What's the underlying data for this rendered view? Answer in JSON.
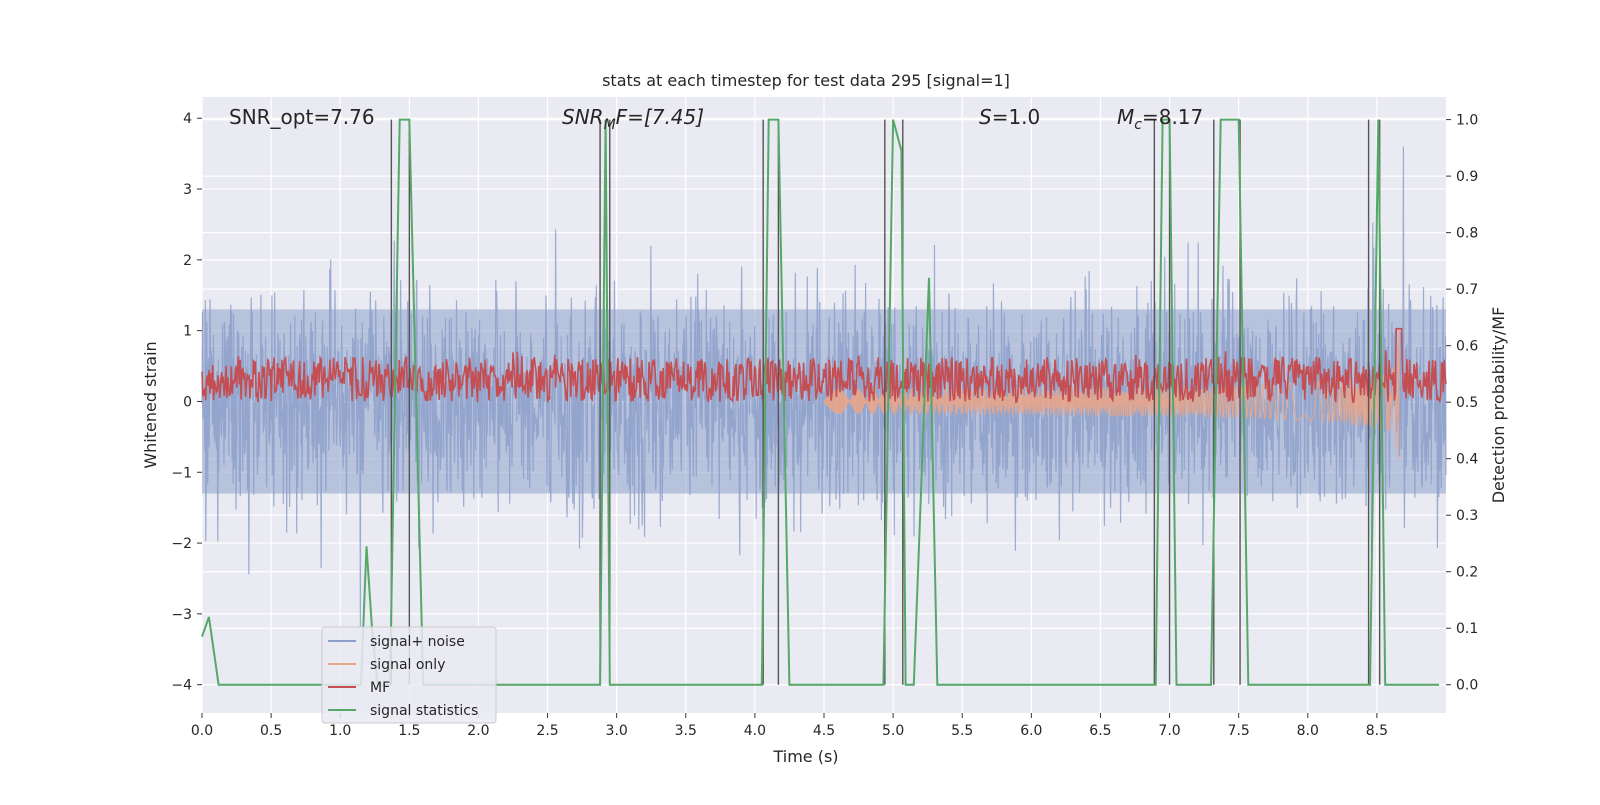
{
  "chart_data": {
    "type": "line",
    "title": "stats at each timestep for test data 295 [signal=1]",
    "xlabel": "Time (s)",
    "ylabel_left": "Whitened strain",
    "ylabel_right": "Detection probability/MF",
    "xlim": [
      0.0,
      9.0
    ],
    "ylim_left": [
      -4.4,
      4.3
    ],
    "ylim_right": [
      -0.05,
      1.04
    ],
    "x_ticks": [
      "0.0",
      "0.5",
      "1.0",
      "1.5",
      "2.0",
      "2.5",
      "3.0",
      "3.5",
      "4.0",
      "4.5",
      "5.0",
      "5.5",
      "6.0",
      "6.5",
      "7.0",
      "7.5",
      "8.0",
      "8.5"
    ],
    "y_left_ticks": [
      "4",
      "3",
      "2",
      "1",
      "0",
      "−1",
      "−2",
      "−3",
      "−4"
    ],
    "y_right_ticks": [
      "1.0",
      "0.9",
      "0.8",
      "0.7",
      "0.6",
      "0.5",
      "0.4",
      "0.3",
      "0.2",
      "0.1",
      "0.0"
    ],
    "grid": true,
    "annotations": {
      "snr_opt": "SNR_opt=7.76",
      "snr_mf": "SNR",
      "snr_mf_sub": "M",
      "snr_mf_rest": "F=[7.45]",
      "s_var": "S",
      "s_rest": "=1.0",
      "mc_var": "M",
      "mc_sub": "c",
      "mc_rest": "=8.17"
    },
    "legend": {
      "placement": "lower-left",
      "entries": [
        "signal+ noise",
        "signal only",
        "MF",
        "signal statistics"
      ]
    },
    "colors": {
      "noise": "#8da0cb",
      "signal": "#e8a58a",
      "mf": "#c44e52",
      "stat": "#55a868",
      "vline": "#555555",
      "plot_bg": "#eaeaf2"
    },
    "series": [
      {
        "name": "signal+ noise",
        "description_kind": "whitened noisy strain, dense oscillation roughly between -2.5 and 2.5 with spikes to about 3.5",
        "amplitude": 2.4
      },
      {
        "name": "signal only",
        "chirp_end_time": 8.66,
        "peak_amplitude": 1.2
      },
      {
        "name": "MF",
        "baseline": 0.52,
        "range": [
          0.5,
          0.58
        ],
        "peak_time": 8.66,
        "peak_value": 0.63
      },
      {
        "name": "signal statistics",
        "points": [
          [
            0.0,
            0.085
          ],
          [
            0.05,
            0.12
          ],
          [
            0.12,
            0.0
          ],
          [
            0.4,
            0.0
          ],
          [
            1.0,
            0.0
          ],
          [
            1.15,
            0.0
          ],
          [
            1.19,
            0.245
          ],
          [
            1.23,
            0.1
          ],
          [
            1.27,
            0.0
          ],
          [
            1.36,
            0.0
          ],
          [
            1.43,
            1.0
          ],
          [
            1.5,
            1.0
          ],
          [
            1.6,
            0.0
          ],
          [
            2.88,
            0.0
          ],
          [
            2.92,
            1.0
          ],
          [
            2.95,
            0.0
          ],
          [
            4.05,
            0.0
          ],
          [
            4.1,
            1.0
          ],
          [
            4.17,
            1.0
          ],
          [
            4.25,
            0.0
          ],
          [
            4.93,
            0.0
          ],
          [
            5.0,
            1.0
          ],
          [
            5.06,
            0.945
          ],
          [
            5.09,
            0.0
          ],
          [
            5.15,
            0.0
          ],
          [
            5.26,
            0.72
          ],
          [
            5.32,
            0.0
          ],
          [
            6.9,
            0.0
          ],
          [
            6.95,
            1.0
          ],
          [
            7.0,
            1.0
          ],
          [
            7.05,
            0.0
          ],
          [
            7.3,
            0.0
          ],
          [
            7.37,
            1.0
          ],
          [
            7.5,
            1.0
          ],
          [
            7.57,
            0.0
          ],
          [
            8.45,
            0.0
          ],
          [
            8.51,
            1.0
          ],
          [
            8.56,
            0.0
          ],
          [
            8.95,
            0.0
          ]
        ]
      }
    ],
    "vertical_lines_x": [
      1.37,
      1.5,
      2.88,
      2.95,
      4.06,
      4.17,
      4.94,
      5.07,
      6.89,
      7.0,
      7.32,
      7.51,
      8.44,
      8.52
    ]
  }
}
